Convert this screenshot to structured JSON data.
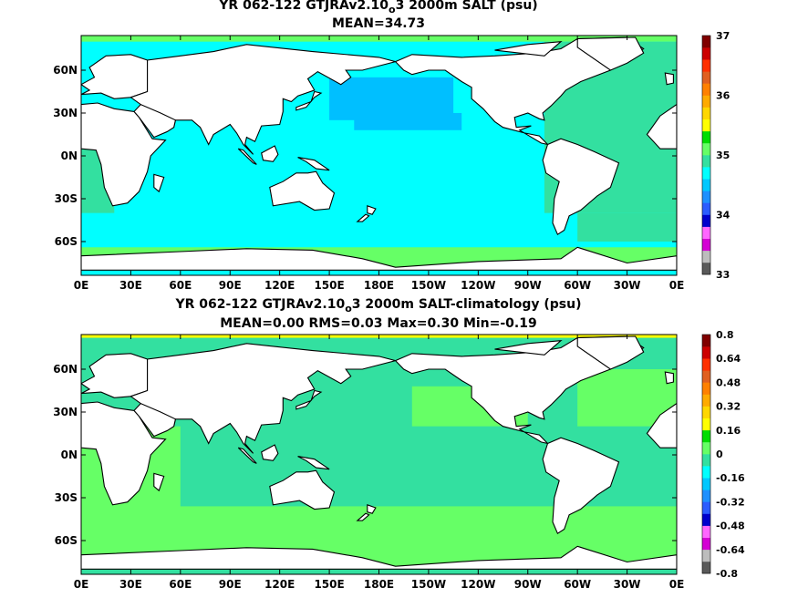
{
  "chart_data": [
    {
      "type": "heatmap",
      "title": "YR 062-122 GTJRAv2.10",
      "title_subscript": "o",
      "title_suffix": "3 2000m SALT (psu)",
      "subtitle": "MEAN=34.73",
      "x_tick_labels": [
        "0E",
        "30E",
        "60E",
        "90E",
        "120E",
        "150E",
        "180E",
        "150W",
        "120W",
        "90W",
        "60W",
        "30W",
        "0E"
      ],
      "y_tick_labels": [
        "60N",
        "30N",
        "0N",
        "30S",
        "60S"
      ],
      "colorbar_labels": [
        "37",
        "36",
        "35",
        "34",
        "33"
      ],
      "colorbar_range": [
        33,
        37
      ],
      "colorbar_colors": [
        "#5a5a5a",
        "#bdbdbd",
        "#d400d4",
        "#ff66ff",
        "#0000cc",
        "#2b5cff",
        "#1e90ff",
        "#00c8ff",
        "#00ffff",
        "#33e0a0",
        "#66ff66",
        "#00dd00",
        "#ffff00",
        "#ffd700",
        "#ffaa00",
        "#ff8000",
        "#e06020",
        "#ff3000",
        "#cc0000",
        "#800000"
      ],
      "ocean_colors": {
        "dominant": "#00ffff",
        "pacific_north": "#00bfff",
        "atlantic": "#33e0a0",
        "polar": "#66ff66"
      }
    },
    {
      "type": "heatmap",
      "title": "YR 062-122 GTJRAv2.10",
      "title_subscript": "o",
      "title_suffix": "3 2000m SALT-climatology (psu)",
      "subtitle": "MEAN=0.00   RMS=0.03   Max=0.30   Min=-0.19",
      "x_tick_labels": [
        "0E",
        "30E",
        "60E",
        "90E",
        "120E",
        "150E",
        "180E",
        "150W",
        "120W",
        "90W",
        "60W",
        "30W",
        "0E"
      ],
      "y_tick_labels": [
        "60N",
        "30N",
        "0N",
        "30S",
        "60S"
      ],
      "colorbar_labels": [
        "0.8",
        "0.64",
        "0.48",
        "0.32",
        "0.16",
        "0",
        "-0.16",
        "-0.32",
        "-0.48",
        "-0.64",
        "-0.8"
      ],
      "colorbar_range": [
        -0.8,
        0.8
      ],
      "colorbar_colors": [
        "#5a5a5a",
        "#bdbdbd",
        "#d400d4",
        "#ff66ff",
        "#0000cc",
        "#2b5cff",
        "#1e90ff",
        "#00c8ff",
        "#00ffff",
        "#33e0a0",
        "#66ff66",
        "#00dd00",
        "#ffff00",
        "#ffd700",
        "#ffaa00",
        "#ff8000",
        "#e06020",
        "#ff3000",
        "#cc0000",
        "#800000"
      ],
      "ocean_colors": {
        "dominant": "#33e0a0",
        "secondary": "#66ff66",
        "polar": "#ffff00"
      }
    }
  ]
}
